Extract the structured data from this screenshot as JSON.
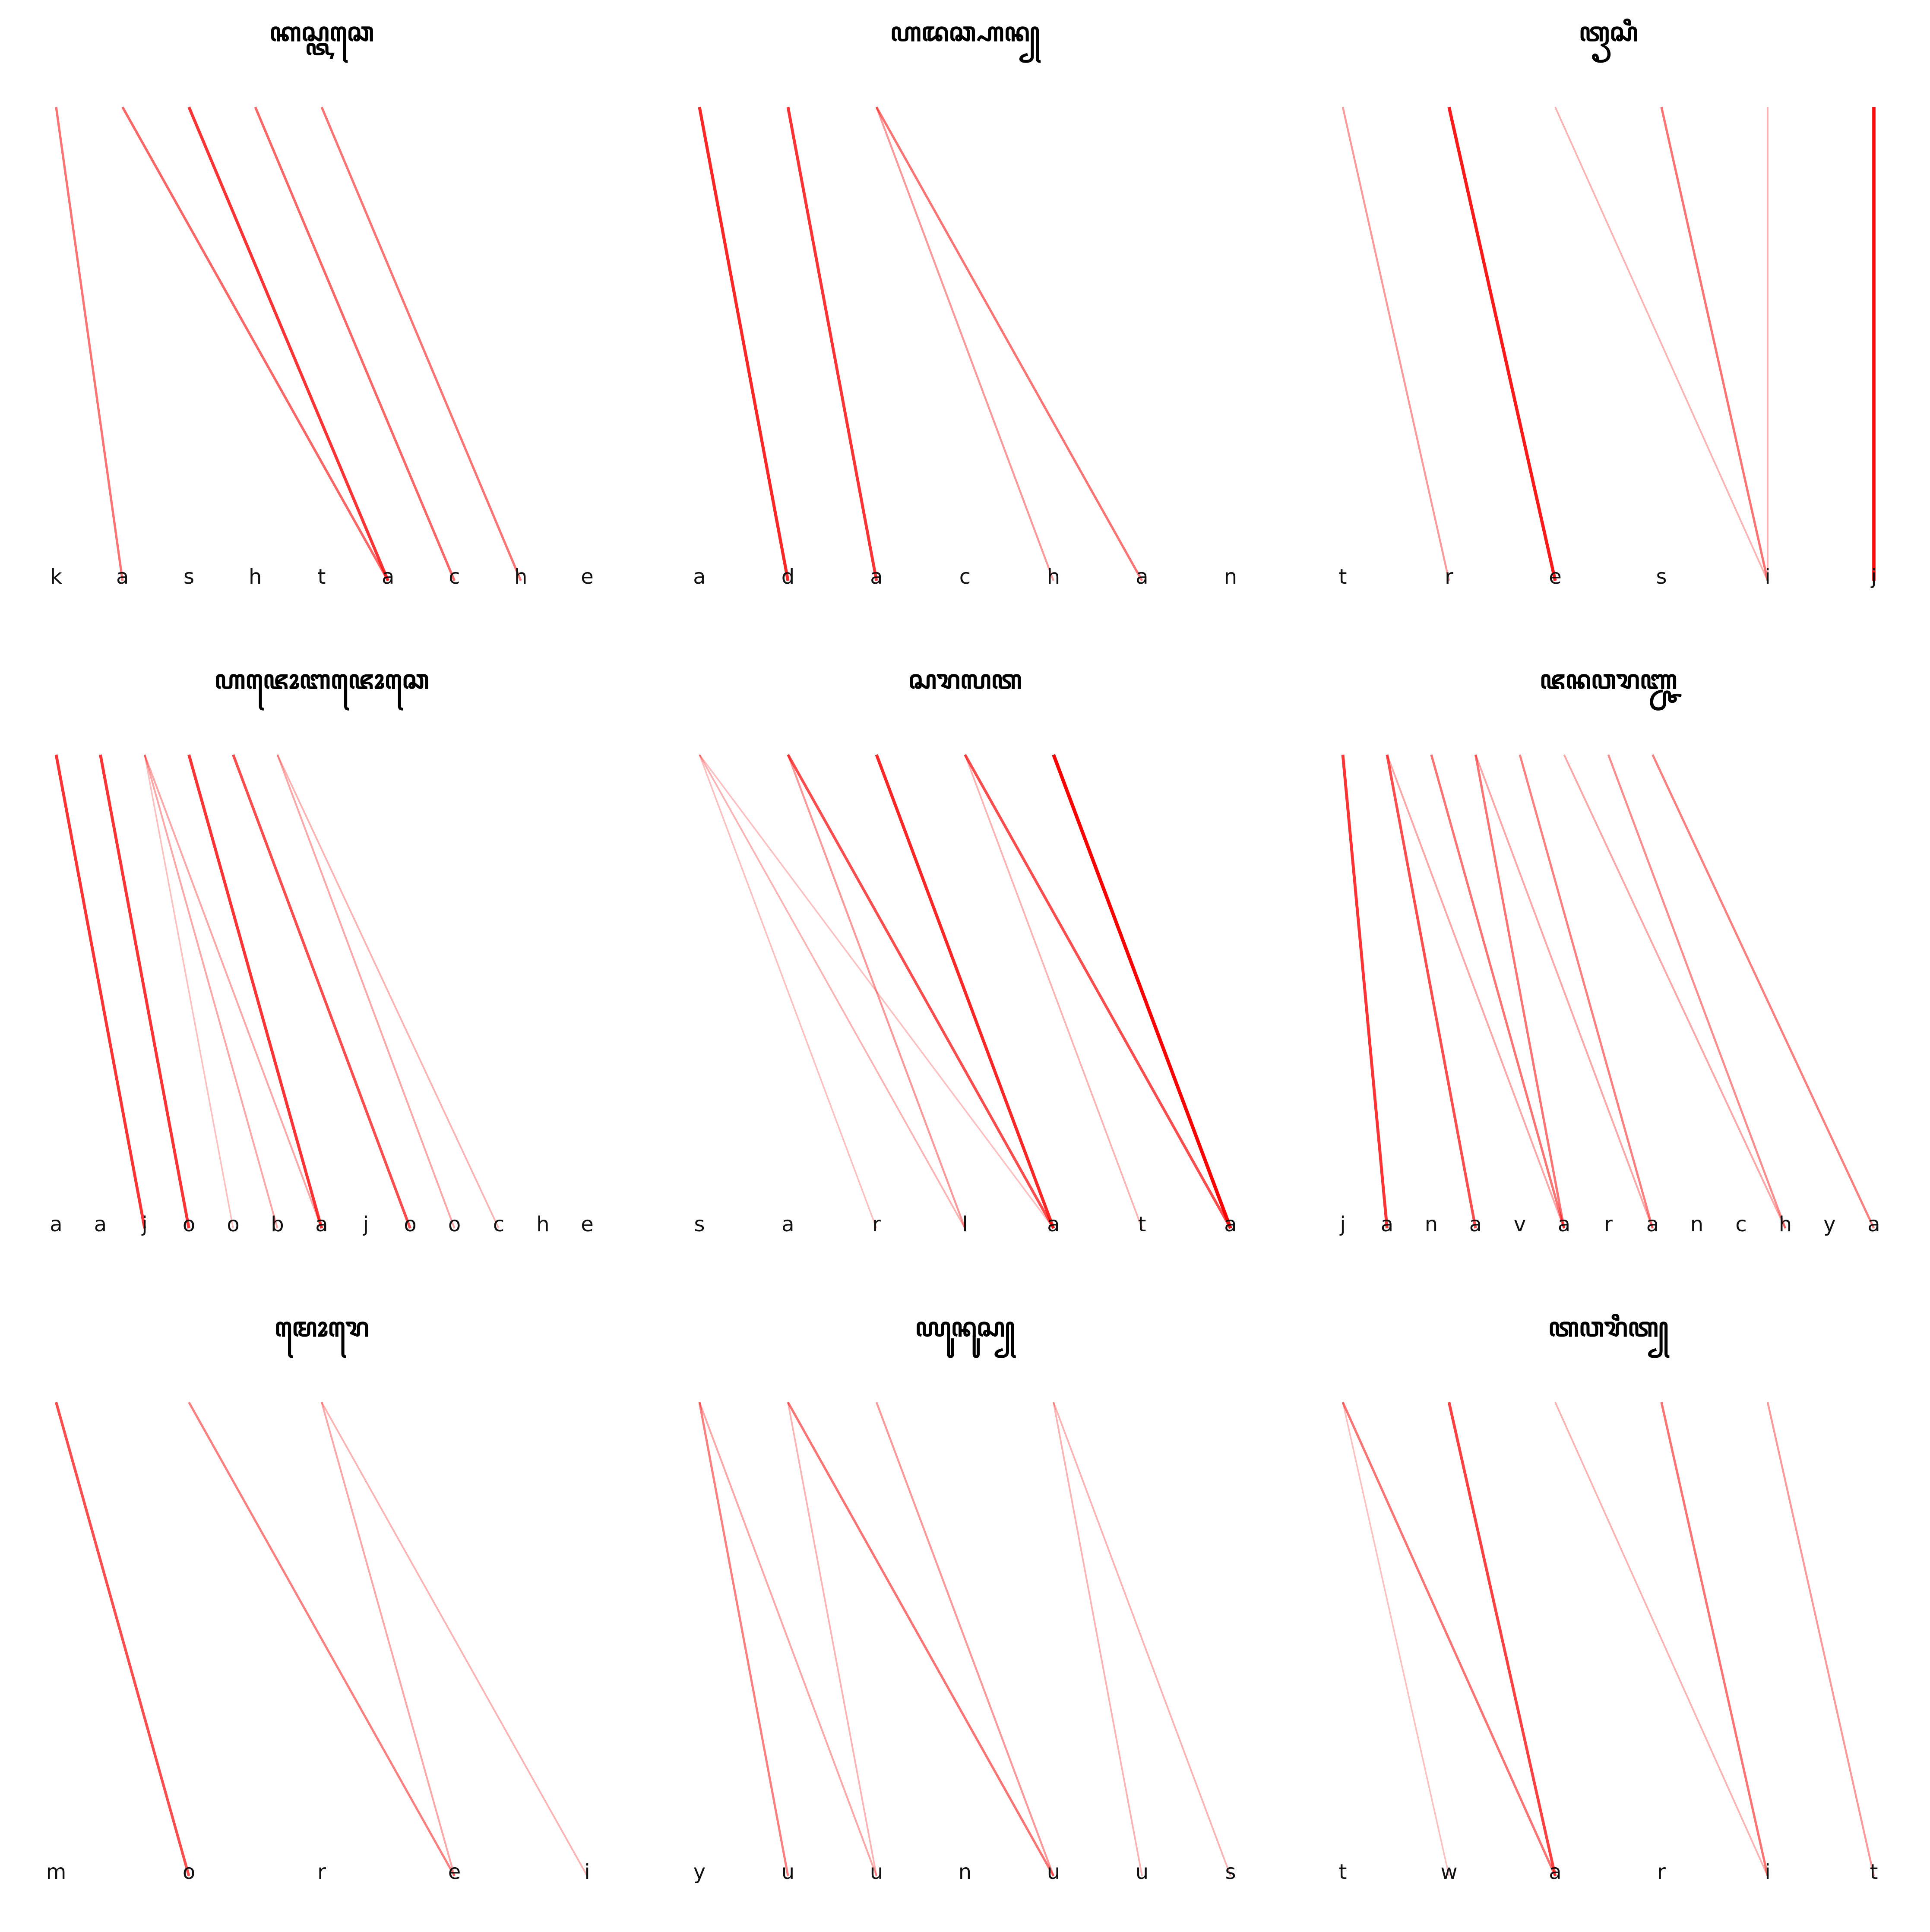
{
  "panels": [
    {
      "title": "ꦏꦱ꧀ꦠꦕꦺ",
      "source_count": 6,
      "target": [
        "k",
        "a",
        "s",
        "h",
        "t",
        "a",
        "c",
        "h",
        "e"
      ],
      "links": [
        {
          "from": 0,
          "to": 1,
          "weight": 0.55
        },
        {
          "from": 1,
          "to": 5,
          "weight": 0.6
        },
        {
          "from": 2,
          "to": 5,
          "weight": 0.8
        },
        {
          "from": 3,
          "to": 6,
          "weight": 0.6
        },
        {
          "from": 4,
          "to": 7,
          "weight": 0.55
        }
      ]
    },
    {
      "title": "ꦲꦢꦕ꧀ꦲꦤ꧀",
      "source_count": 7,
      "target": [
        "a",
        "d",
        "a",
        "c",
        "h",
        "a",
        "n"
      ],
      "links": [
        {
          "from": 0,
          "to": 1,
          "weight": 0.85
        },
        {
          "from": 1,
          "to": 2,
          "weight": 0.8
        },
        {
          "from": 2,
          "to": 4,
          "weight": 0.4
        },
        {
          "from": 2,
          "to": 5,
          "weight": 0.55
        }
      ]
    },
    {
      "title": "ꦠꦽꦱꦶ",
      "source_count": 6,
      "target": [
        "t",
        "r",
        "e",
        "s",
        "i",
        "j"
      ],
      "links": [
        {
          "from": 0,
          "to": 1,
          "weight": 0.4
        },
        {
          "from": 1,
          "to": 2,
          "weight": 0.9
        },
        {
          "from": 2,
          "to": 4,
          "weight": 0.3
        },
        {
          "from": 3,
          "to": 4,
          "weight": 0.55
        },
        {
          "from": 4,
          "to": 4,
          "weight": 0.3
        },
        {
          "from": 5,
          "to": 5,
          "weight": 0.95
        }
      ]
    },
    {
      "title": "ꦲꦗꦺꦴꦧꦗꦺꦴꦕꦺ",
      "source_count": 13,
      "target": [
        "a",
        "a",
        "j",
        "o",
        "o",
        "b",
        "a",
        "j",
        "o",
        "o",
        "c",
        "h",
        "e"
      ],
      "links": [
        {
          "from": 0,
          "to": 2,
          "weight": 0.8
        },
        {
          "from": 1,
          "to": 3,
          "weight": 0.8
        },
        {
          "from": 2,
          "to": 4,
          "weight": 0.25
        },
        {
          "from": 2,
          "to": 5,
          "weight": 0.35
        },
        {
          "from": 2,
          "to": 6,
          "weight": 0.35
        },
        {
          "from": 3,
          "to": 6,
          "weight": 0.8
        },
        {
          "from": 4,
          "to": 8,
          "weight": 0.7
        },
        {
          "from": 5,
          "to": 9,
          "weight": 0.35
        },
        {
          "from": 5,
          "to": 10,
          "weight": 0.3
        }
      ]
    },
    {
      "title": "ꦱꦫꦭꦠ",
      "source_count": 7,
      "target": [
        "s",
        "a",
        "r",
        "l",
        "a",
        "t",
        "a"
      ],
      "links": [
        {
          "from": 0,
          "to": 2,
          "weight": 0.25
        },
        {
          "from": 0,
          "to": 3,
          "weight": 0.3
        },
        {
          "from": 0,
          "to": 4,
          "weight": 0.25
        },
        {
          "from": 1,
          "to": 3,
          "weight": 0.4
        },
        {
          "from": 1,
          "to": 4,
          "weight": 0.7
        },
        {
          "from": 2,
          "to": 4,
          "weight": 0.85
        },
        {
          "from": 3,
          "to": 5,
          "weight": 0.3
        },
        {
          "from": 3,
          "to": 6,
          "weight": 0.7
        },
        {
          "from": 4,
          "to": 6,
          "weight": 1.0
        }
      ]
    },
    {
      "title": "ꦗꦤꦮꦫꦚ꧀ꦕ",
      "source_count": 13,
      "target": [
        "j",
        "a",
        "n",
        "a",
        "v",
        "a",
        "r",
        "a",
        "n",
        "c",
        "h",
        "y",
        "a"
      ],
      "links": [
        {
          "from": 0,
          "to": 1,
          "weight": 0.8
        },
        {
          "from": 1,
          "to": 3,
          "weight": 0.7
        },
        {
          "from": 1,
          "to": 5,
          "weight": 0.35
        },
        {
          "from": 2,
          "to": 5,
          "weight": 0.55
        },
        {
          "from": 3,
          "to": 5,
          "weight": 0.55
        },
        {
          "from": 3,
          "to": 7,
          "weight": 0.35
        },
        {
          "from": 4,
          "to": 7,
          "weight": 0.5
        },
        {
          "from": 5,
          "to": 10,
          "weight": 0.35
        },
        {
          "from": 6,
          "to": 10,
          "weight": 0.45
        },
        {
          "from": 7,
          "to": 12,
          "weight": 0.5
        }
      ]
    },
    {
      "title": "ꦩꦺꦴꦫꦺ",
      "source_count": 5,
      "target": [
        "m",
        "o",
        "r",
        "e",
        "i"
      ],
      "links": [
        {
          "from": 0,
          "to": 1,
          "weight": 0.7
        },
        {
          "from": 1,
          "to": 3,
          "weight": 0.5
        },
        {
          "from": 2,
          "to": 3,
          "weight": 0.35
        },
        {
          "from": 2,
          "to": 4,
          "weight": 0.3
        }
      ]
    },
    {
      "title": "ꦪꦸꦤꦸꦱ꧀",
      "source_count": 7,
      "target": [
        "y",
        "u",
        "u",
        "n",
        "u",
        "u",
        "s"
      ],
      "links": [
        {
          "from": 0,
          "to": 1,
          "weight": 0.5
        },
        {
          "from": 0,
          "to": 2,
          "weight": 0.35
        },
        {
          "from": 1,
          "to": 2,
          "weight": 0.3
        },
        {
          "from": 1,
          "to": 4,
          "weight": 0.55
        },
        {
          "from": 2,
          "to": 4,
          "weight": 0.4
        },
        {
          "from": 4,
          "to": 5,
          "weight": 0.3
        },
        {
          "from": 4,
          "to": 6,
          "weight": 0.3
        }
      ]
    },
    {
      "title": "ꦠꦮꦫꦶꦠ꧀",
      "source_count": 6,
      "target": [
        "t",
        "w",
        "a",
        "r",
        "i",
        "t"
      ],
      "links": [
        {
          "from": 0,
          "to": 1,
          "weight": 0.25
        },
        {
          "from": 0,
          "to": 2,
          "weight": 0.55
        },
        {
          "from": 1,
          "to": 2,
          "weight": 0.75
        },
        {
          "from": 2,
          "to": 4,
          "weight": 0.3
        },
        {
          "from": 3,
          "to": 4,
          "weight": 0.55
        },
        {
          "from": 4,
          "to": 5,
          "weight": 0.4
        }
      ]
    }
  ],
  "colors": {
    "link": "#ff0000",
    "label": "#111111",
    "title": "#000000",
    "background": "#ffffff"
  }
}
